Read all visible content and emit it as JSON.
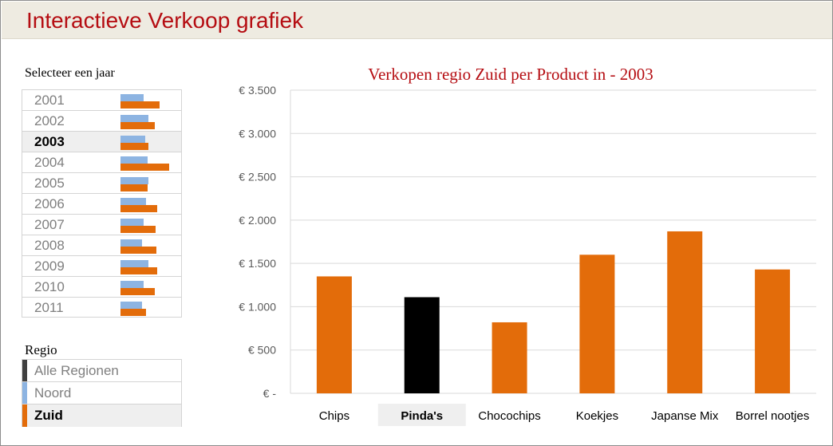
{
  "header": {
    "title": "Interactieve Verkoop grafiek"
  },
  "year_selector": {
    "label": "Selecteer een jaar",
    "selected": "2003",
    "items": [
      {
        "year": "2001",
        "noord": 0.47,
        "zuid": 0.8
      },
      {
        "year": "2002",
        "noord": 0.57,
        "zuid": 0.7
      },
      {
        "year": "2003",
        "noord": 0.5,
        "zuid": 0.57
      },
      {
        "year": "2004",
        "noord": 0.55,
        "zuid": 1.0
      },
      {
        "year": "2005",
        "noord": 0.58,
        "zuid": 0.55
      },
      {
        "year": "2006",
        "noord": 0.52,
        "zuid": 0.75
      },
      {
        "year": "2007",
        "noord": 0.48,
        "zuid": 0.72
      },
      {
        "year": "2008",
        "noord": 0.45,
        "zuid": 0.73
      },
      {
        "year": "2009",
        "noord": 0.58,
        "zuid": 0.75
      },
      {
        "year": "2010",
        "noord": 0.48,
        "zuid": 0.7
      },
      {
        "year": "2011",
        "noord": 0.45,
        "zuid": 0.53
      }
    ]
  },
  "region_selector": {
    "label": "Regio",
    "selected": "Zuid",
    "items": [
      {
        "name": "Alle Regionen",
        "color": "#404040"
      },
      {
        "name": "Noord",
        "color": "#8db4e2"
      },
      {
        "name": "Zuid",
        "color": "#e36c0a"
      }
    ]
  },
  "chart_data": {
    "type": "bar",
    "title": "Verkopen regio Zuid per Product in - 2003",
    "categories": [
      "Chips",
      "Pinda's",
      "Chocochips",
      "Koekjes",
      "Japanse Mix",
      "Borrel nootjes"
    ],
    "values": [
      1350,
      1110,
      820,
      1600,
      1870,
      1430
    ],
    "highlight": "Pinda's",
    "ylim": [
      0,
      3500
    ],
    "yticks": [
      "€ -",
      "€ 500",
      "€ 1.000",
      "€ 1.500",
      "€ 2.000",
      "€ 2.500",
      "€ 3.000",
      "€ 3.500"
    ],
    "colors": {
      "bar": "#e36c0a",
      "highlight": "#000000",
      "grid": "#d9d9d9"
    },
    "grid": true,
    "legend": "none"
  }
}
